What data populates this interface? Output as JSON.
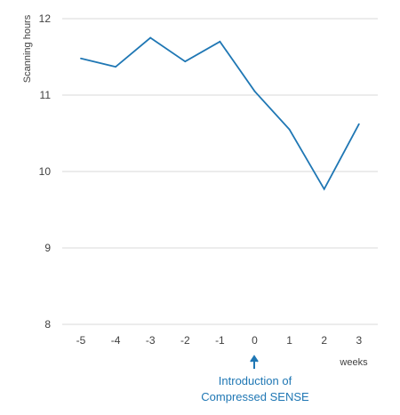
{
  "chart_data": {
    "type": "line",
    "x": [
      -5,
      -4,
      -3,
      -2,
      -1,
      0,
      1,
      2,
      3
    ],
    "series": [
      {
        "values": [
          11.48,
          11.37,
          11.75,
          11.44,
          11.7,
          11.05,
          10.55,
          9.77,
          10.62
        ]
      }
    ],
    "ylabel": "Scanning hours",
    "xlabel": "weeks",
    "ylim": [
      8,
      12
    ],
    "yticks": [
      8,
      9,
      10,
      11,
      12
    ],
    "xtick_labels": [
      "-5",
      "-4",
      "-3",
      "-2",
      "-1",
      "0",
      "1",
      "2",
      "3"
    ],
    "grid": "horizontal",
    "line_color": "#1f77b4",
    "grid_color": "#d9d9d9",
    "annotation": {
      "at_x": 0,
      "line1": "Introduction of",
      "line2": "Compressed SENSE",
      "color": "#1f77b4"
    }
  }
}
